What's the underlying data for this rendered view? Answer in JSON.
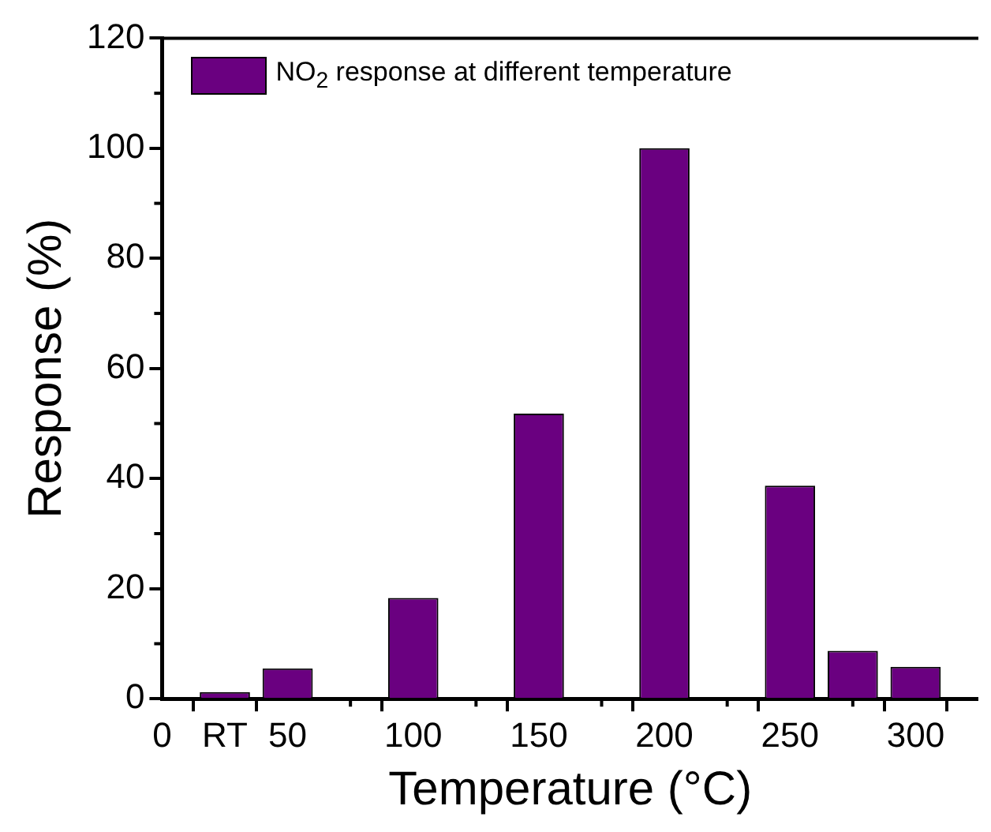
{
  "chart_data": {
    "type": "bar",
    "xlabel": "Temperature (°C)",
    "ylabel": "Response (%)",
    "x": [
      25,
      50,
      100,
      150,
      200,
      250,
      275,
      300
    ],
    "series": [
      {
        "name": "NO$_{2}$ response at different temperature",
        "color": "#6a0080",
        "values": [
          1.2,
          5.5,
          18.3,
          51.8,
          100,
          38.7,
          8.7,
          5.8
        ]
      }
    ],
    "xlim": [
      0,
      325
    ],
    "xticks": [
      0,
      {
        "value": 25,
        "label": "RT"
      },
      50,
      {
        "value": 75,
        "label": null
      },
      100,
      {
        "value": 125,
        "label": null
      },
      150,
      {
        "value": 175,
        "label": null
      },
      200,
      {
        "value": 225,
        "label": null
      },
      250,
      {
        "value": 275,
        "label": null
      },
      300
    ],
    "ylim": [
      0,
      120
    ],
    "yticks": [
      0,
      {
        "value": 10,
        "label": null
      },
      20,
      {
        "value": 30,
        "label": null
      },
      40,
      {
        "value": 50,
        "label": null
      },
      60,
      {
        "value": 70,
        "label": null
      },
      80,
      {
        "value": 90,
        "label": null
      },
      100,
      {
        "value": 110,
        "label": null
      },
      120
    ],
    "grid": false,
    "legend": "top left"
  }
}
